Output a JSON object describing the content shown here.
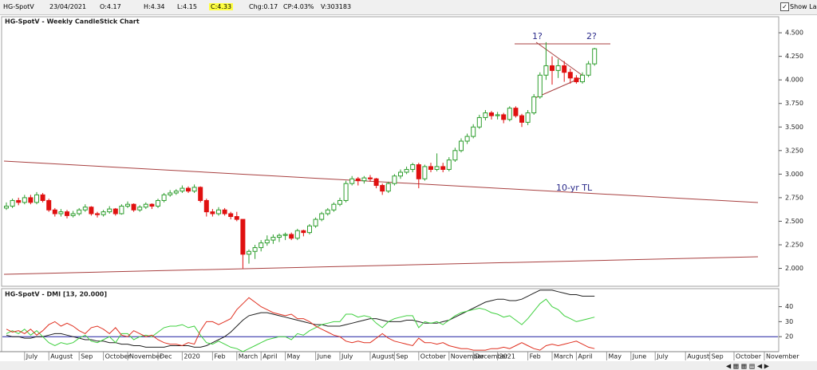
{
  "toolbar": {
    "symbol": "HG-SpotV",
    "date": "23/04/2021",
    "open": "O:4.17",
    "high": "H:4.34",
    "low": "L:4.15",
    "close": "C:4.33",
    "change": "Chg:0.17",
    "change_pct": "CP:4.03%",
    "volume": "V:303183",
    "show_last": "Show Last"
  },
  "chart_data": [
    {
      "type": "candlestick",
      "title": "HG-SpotV - Weekly CandleStick Chart",
      "up_color": "#2e9e2e",
      "down_color": "#e01010",
      "ylim": [
        1.81,
        4.67
      ],
      "yticks": [
        {
          "value": 2.0,
          "label": "2.000"
        },
        {
          "value": 2.25,
          "label": "2.250"
        },
        {
          "value": 2.5,
          "label": "2.500"
        },
        {
          "value": 2.75,
          "label": "2.750"
        },
        {
          "value": 3.0,
          "label": "3.000"
        },
        {
          "value": 3.25,
          "label": "3.250"
        },
        {
          "value": 3.5,
          "label": "3.500"
        },
        {
          "value": 3.75,
          "label": "3.750"
        },
        {
          "value": 4.0,
          "label": "4.000"
        },
        {
          "value": 4.25,
          "label": "4.250"
        },
        {
          "value": 4.5,
          "label": "4.500"
        }
      ],
      "annotations": [
        "1?",
        "2?",
        "10-yr TL"
      ],
      "categories": [
        null,
        null,
        null,
        "July",
        null,
        null,
        null,
        "August",
        null,
        null,
        null,
        null,
        "Sep",
        null,
        null,
        null,
        "October",
        null,
        null,
        null,
        "November",
        null,
        null,
        null,
        null,
        "Dec",
        null,
        null,
        null,
        "2020",
        null,
        null,
        null,
        null,
        "Feb",
        null,
        null,
        null,
        "March",
        null,
        null,
        null,
        "April",
        null,
        null,
        null,
        "May",
        null,
        null,
        null,
        null,
        "June",
        null,
        null,
        null,
        "July",
        null,
        null,
        null,
        null,
        "August",
        null,
        null,
        null,
        "Sep",
        null,
        null,
        null,
        "October",
        null,
        null,
        null,
        null,
        "November",
        null,
        null,
        null,
        "December",
        null,
        null,
        null,
        "2021",
        null,
        null,
        null,
        null,
        "Feb",
        null,
        null,
        null,
        "March",
        null,
        null,
        null,
        "April",
        null,
        null,
        null,
        null,
        "May",
        null,
        null,
        null,
        "June",
        null,
        null,
        null,
        "July",
        null,
        null,
        null,
        null,
        "August",
        null,
        null,
        null,
        "Sep",
        null,
        null,
        null,
        "October",
        null,
        null,
        null,
        null,
        "November"
      ],
      "candles": [
        [
          2.64,
          2.7,
          2.62,
          2.66
        ],
        [
          2.66,
          2.74,
          2.64,
          2.72
        ],
        [
          2.72,
          2.75,
          2.67,
          2.7
        ],
        [
          2.7,
          2.78,
          2.68,
          2.75
        ],
        [
          2.75,
          2.78,
          2.68,
          2.7
        ],
        [
          2.7,
          2.81,
          2.68,
          2.78
        ],
        [
          2.78,
          2.8,
          2.7,
          2.72
        ],
        [
          2.72,
          2.74,
          2.6,
          2.62
        ],
        [
          2.62,
          2.64,
          2.55,
          2.58
        ],
        [
          2.58,
          2.63,
          2.55,
          2.6
        ],
        [
          2.6,
          2.62,
          2.53,
          2.56
        ],
        [
          2.56,
          2.61,
          2.54,
          2.58
        ],
        [
          2.58,
          2.64,
          2.56,
          2.62
        ],
        [
          2.62,
          2.68,
          2.6,
          2.65
        ],
        [
          2.65,
          2.66,
          2.56,
          2.58
        ],
        [
          2.58,
          2.6,
          2.54,
          2.57
        ],
        [
          2.57,
          2.62,
          2.55,
          2.6
        ],
        [
          2.6,
          2.66,
          2.58,
          2.63
        ],
        [
          2.63,
          2.64,
          2.56,
          2.58
        ],
        [
          2.58,
          2.68,
          2.57,
          2.66
        ],
        [
          2.66,
          2.71,
          2.64,
          2.68
        ],
        [
          2.68,
          2.69,
          2.6,
          2.62
        ],
        [
          2.62,
          2.67,
          2.6,
          2.65
        ],
        [
          2.65,
          2.7,
          2.63,
          2.68
        ],
        [
          2.68,
          2.69,
          2.63,
          2.66
        ],
        [
          2.66,
          2.74,
          2.64,
          2.72
        ],
        [
          2.72,
          2.8,
          2.7,
          2.78
        ],
        [
          2.78,
          2.83,
          2.76,
          2.8
        ],
        [
          2.8,
          2.84,
          2.78,
          2.82
        ],
        [
          2.82,
          2.88,
          2.8,
          2.85
        ],
        [
          2.85,
          2.87,
          2.8,
          2.82
        ],
        [
          2.82,
          2.89,
          2.8,
          2.86
        ],
        [
          2.86,
          2.87,
          2.7,
          2.72
        ],
        [
          2.72,
          2.74,
          2.55,
          2.6
        ],
        [
          2.6,
          2.63,
          2.55,
          2.58
        ],
        [
          2.58,
          2.65,
          2.56,
          2.62
        ],
        [
          2.62,
          2.64,
          2.56,
          2.58
        ],
        [
          2.58,
          2.6,
          2.52,
          2.55
        ],
        [
          2.55,
          2.6,
          2.5,
          2.52
        ],
        [
          2.52,
          2.52,
          2.0,
          2.15
        ],
        [
          2.15,
          2.2,
          2.05,
          2.18
        ],
        [
          2.18,
          2.25,
          2.1,
          2.22
        ],
        [
          2.22,
          2.3,
          2.18,
          2.27
        ],
        [
          2.27,
          2.35,
          2.24,
          2.3
        ],
        [
          2.3,
          2.36,
          2.26,
          2.33
        ],
        [
          2.33,
          2.37,
          2.28,
          2.35
        ],
        [
          2.35,
          2.38,
          2.3,
          2.36
        ],
        [
          2.36,
          2.38,
          2.3,
          2.32
        ],
        [
          2.32,
          2.42,
          2.3,
          2.4
        ],
        [
          2.4,
          2.41,
          2.34,
          2.38
        ],
        [
          2.38,
          2.47,
          2.36,
          2.45
        ],
        [
          2.45,
          2.54,
          2.43,
          2.52
        ],
        [
          2.52,
          2.6,
          2.5,
          2.58
        ],
        [
          2.58,
          2.64,
          2.56,
          2.62
        ],
        [
          2.62,
          2.7,
          2.6,
          2.68
        ],
        [
          2.68,
          2.75,
          2.66,
          2.72
        ],
        [
          2.72,
          2.93,
          2.7,
          2.9
        ],
        [
          2.9,
          2.98,
          2.88,
          2.95
        ],
        [
          2.95,
          2.97,
          2.88,
          2.93
        ],
        [
          2.93,
          2.98,
          2.9,
          2.96
        ],
        [
          2.96,
          2.99,
          2.92,
          2.95
        ],
        [
          2.95,
          2.96,
          2.85,
          2.88
        ],
        [
          2.88,
          2.9,
          2.78,
          2.82
        ],
        [
          2.82,
          2.92,
          2.8,
          2.9
        ],
        [
          2.9,
          3.0,
          2.88,
          2.98
        ],
        [
          2.98,
          3.05,
          2.95,
          3.02
        ],
        [
          3.02,
          3.08,
          3.0,
          3.05
        ],
        [
          3.05,
          3.12,
          3.02,
          3.1
        ],
        [
          3.1,
          3.12,
          2.85,
          2.95
        ],
        [
          2.95,
          3.1,
          2.93,
          3.08
        ],
        [
          3.08,
          3.12,
          3.02,
          3.05
        ],
        [
          3.05,
          3.22,
          3.03,
          3.08
        ],
        [
          3.08,
          3.12,
          3.02,
          3.05
        ],
        [
          3.05,
          3.18,
          3.03,
          3.15
        ],
        [
          3.15,
          3.28,
          3.13,
          3.25
        ],
        [
          3.25,
          3.38,
          3.23,
          3.35
        ],
        [
          3.35,
          3.43,
          3.32,
          3.4
        ],
        [
          3.4,
          3.53,
          3.38,
          3.5
        ],
        [
          3.5,
          3.63,
          3.48,
          3.6
        ],
        [
          3.6,
          3.68,
          3.57,
          3.65
        ],
        [
          3.65,
          3.67,
          3.58,
          3.62
        ],
        [
          3.62,
          3.66,
          3.58,
          3.63
        ],
        [
          3.63,
          3.65,
          3.54,
          3.58
        ],
        [
          3.58,
          3.72,
          3.56,
          3.7
        ],
        [
          3.7,
          3.72,
          3.6,
          3.62
        ],
        [
          3.62,
          3.64,
          3.5,
          3.55
        ],
        [
          3.55,
          3.68,
          3.52,
          3.65
        ],
        [
          3.65,
          3.85,
          3.63,
          3.82
        ],
        [
          3.82,
          4.08,
          3.8,
          4.05
        ],
        [
          4.05,
          4.4,
          4.0,
          4.15
        ],
        [
          4.15,
          4.25,
          3.95,
          4.1
        ],
        [
          4.1,
          4.22,
          4.02,
          4.15
        ],
        [
          4.15,
          4.2,
          3.98,
          4.08
        ],
        [
          4.08,
          4.12,
          3.96,
          4.02
        ],
        [
          4.02,
          4.05,
          3.96,
          3.98
        ],
        [
          3.98,
          4.08,
          3.96,
          4.05
        ],
        [
          4.05,
          4.2,
          4.03,
          4.17
        ],
        [
          4.17,
          4.34,
          4.15,
          4.33
        ],
        null,
        null,
        null,
        null,
        null,
        null,
        null,
        null,
        null,
        null,
        null,
        null,
        null,
        null,
        null,
        null,
        null,
        null,
        null,
        null,
        null,
        null,
        null,
        null,
        null,
        null,
        null,
        null
      ]
    },
    {
      "type": "line",
      "title": "HG-SpotV - DMI [13, 20.000]",
      "ylim": [
        10,
        52
      ],
      "yticks": [
        20,
        30,
        40
      ],
      "threshold": 20,
      "threshold_color": "#2020a0",
      "series": [
        {
          "color": "#202020",
          "values": [
            21,
            20,
            20,
            19,
            19,
            20,
            20,
            21,
            22,
            22,
            21,
            20,
            19,
            18,
            18,
            17,
            17,
            16,
            16,
            15,
            15,
            14,
            14,
            13,
            13,
            13,
            13,
            14,
            14,
            14,
            14,
            13,
            13,
            14,
            16,
            18,
            20,
            23,
            27,
            31,
            34,
            35,
            36,
            36,
            35,
            34,
            33,
            32,
            31,
            30,
            29,
            28,
            28,
            27,
            27,
            27,
            28,
            29,
            30,
            31,
            32,
            32,
            31,
            30,
            30,
            30,
            31,
            31,
            30,
            29,
            29,
            29,
            30,
            31,
            33,
            35,
            37,
            39,
            41,
            43,
            44,
            45,
            45,
            44,
            44,
            45,
            47,
            49,
            51,
            51,
            51,
            50,
            49,
            48,
            48,
            47,
            47,
            47,
            null,
            null,
            null,
            null,
            null,
            null,
            null,
            null,
            null,
            null,
            null,
            null,
            null,
            null,
            null,
            null,
            null,
            null,
            null,
            null,
            null,
            null,
            null,
            null,
            null,
            null,
            null,
            null
          ]
        },
        {
          "color": "#40d040",
          "values": [
            22,
            24,
            22,
            25,
            21,
            24,
            20,
            16,
            14,
            16,
            15,
            16,
            19,
            21,
            17,
            16,
            18,
            20,
            16,
            22,
            22,
            18,
            20,
            21,
            20,
            23,
            26,
            27,
            27,
            28,
            26,
            27,
            21,
            16,
            15,
            17,
            15,
            13,
            12,
            10,
            12,
            14,
            16,
            18,
            19,
            20,
            20,
            18,
            22,
            21,
            24,
            26,
            28,
            29,
            30,
            30,
            35,
            35,
            33,
            34,
            33,
            29,
            26,
            30,
            32,
            33,
            34,
            34,
            26,
            30,
            29,
            30,
            28,
            31,
            34,
            36,
            37,
            38,
            39,
            38,
            36,
            35,
            33,
            34,
            31,
            28,
            32,
            37,
            42,
            45,
            40,
            38,
            34,
            32,
            30,
            31,
            32,
            33,
            null,
            null,
            null,
            null,
            null,
            null,
            null,
            null,
            null,
            null,
            null,
            null,
            null,
            null,
            null,
            null,
            null,
            null,
            null,
            null,
            null,
            null,
            null,
            null,
            null,
            null,
            null,
            null
          ]
        },
        {
          "color": "#e03020",
          "values": [
            25,
            23,
            24,
            22,
            25,
            21,
            24,
            28,
            30,
            27,
            29,
            27,
            24,
            22,
            26,
            27,
            25,
            22,
            26,
            21,
            20,
            24,
            22,
            20,
            21,
            18,
            16,
            15,
            15,
            14,
            16,
            15,
            24,
            30,
            30,
            28,
            30,
            32,
            38,
            42,
            46,
            43,
            40,
            38,
            36,
            35,
            34,
            35,
            32,
            32,
            30,
            27,
            25,
            23,
            21,
            20,
            17,
            16,
            17,
            16,
            16,
            19,
            22,
            19,
            17,
            16,
            15,
            14,
            19,
            16,
            16,
            15,
            16,
            14,
            13,
            12,
            12,
            11,
            11,
            11,
            12,
            12,
            13,
            12,
            14,
            16,
            14,
            12,
            11,
            14,
            15,
            14,
            15,
            16,
            17,
            15,
            13,
            12,
            null,
            null,
            null,
            null,
            null,
            null,
            null,
            null,
            null,
            null,
            null,
            null,
            null,
            null,
            null,
            null,
            null,
            null,
            null,
            null,
            null,
            null,
            null,
            null,
            null,
            null,
            null,
            null
          ]
        }
      ]
    }
  ]
}
